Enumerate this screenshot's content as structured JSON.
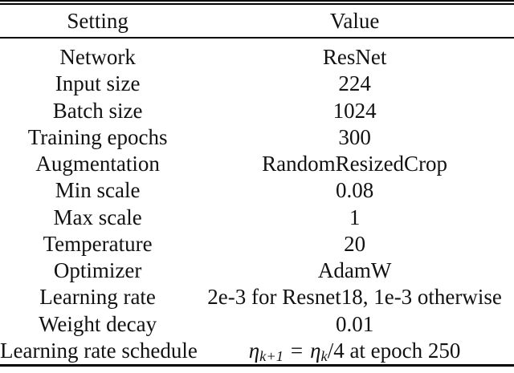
{
  "table": {
    "header": {
      "setting": "Setting",
      "value": "Value"
    },
    "rows": [
      {
        "setting": "Network",
        "value": "ResNet"
      },
      {
        "setting": "Input size",
        "value": "224"
      },
      {
        "setting": "Batch size",
        "value": "1024"
      },
      {
        "setting": "Training epochs",
        "value": "300"
      },
      {
        "setting": "Augmentation",
        "value": "RandomResizedCrop"
      },
      {
        "setting": "Min scale",
        "value": "0.08"
      },
      {
        "setting": "Max scale",
        "value": "1"
      },
      {
        "setting": "Temperature",
        "value": "20"
      },
      {
        "setting": "Optimizer",
        "value": "AdamW"
      },
      {
        "setting": "Learning rate",
        "value": "2e-3 for Resnet18, 1e-3 otherwise"
      },
      {
        "setting": "Weight decay",
        "value": "0.01"
      },
      {
        "setting": "Learning rate schedule",
        "math": {
          "eta1": "η",
          "sub1": "k+1",
          "equals": "=",
          "eta2": "η",
          "sub2": "k",
          "tail": "/4 at epoch 250"
        }
      }
    ],
    "colors": {
      "text": "#121212",
      "rule": "#000000",
      "background": "#ffffff"
    }
  }
}
